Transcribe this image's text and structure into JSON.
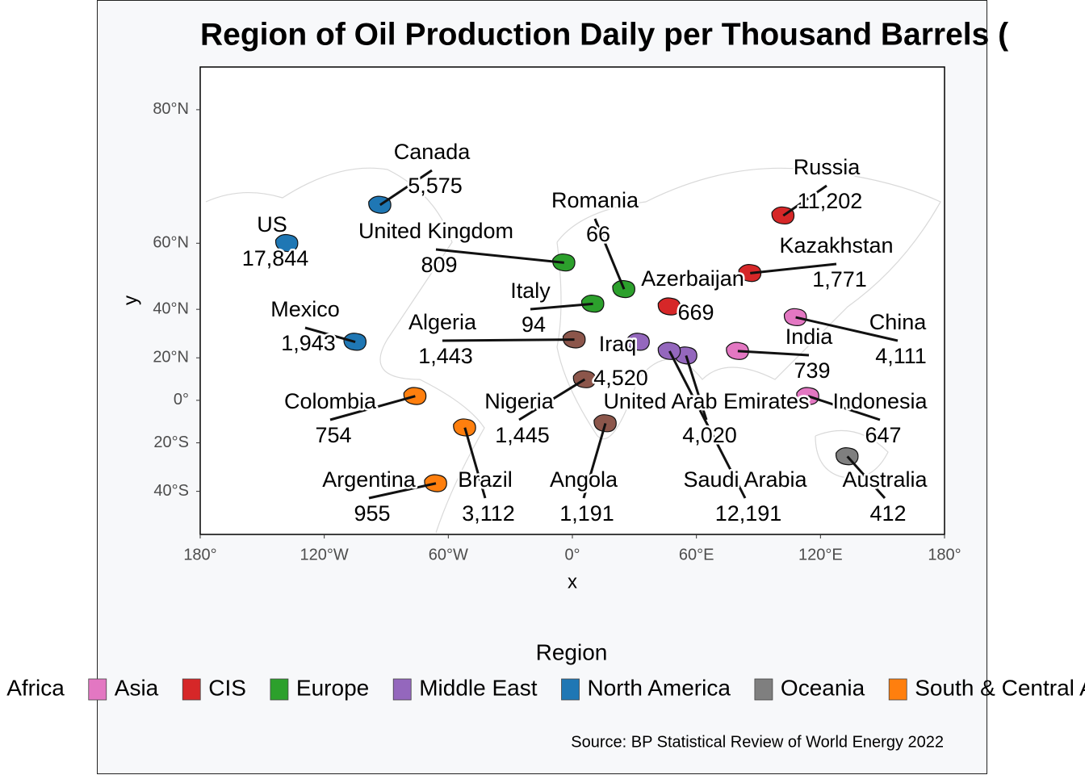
{
  "chart_data": {
    "type": "map",
    "projection": "mercator",
    "title": "Region of Oil Production Daily per Thousand Barrels (",
    "x_label": "x",
    "y_label": "y",
    "legend_title": "Region",
    "caption": "Source: BP Statistical Review of World Energy 2022",
    "xlim": [
      -180,
      180
    ],
    "ylim": [
      -54,
      83
    ],
    "xticks": [
      {
        "value": -180,
        "label": "180°"
      },
      {
        "value": -120,
        "label": "120°W"
      },
      {
        "value": -60,
        "label": "60°W"
      },
      {
        "value": 0,
        "label": "0°"
      },
      {
        "value": 60,
        "label": "60°E"
      },
      {
        "value": 120,
        "label": "120°E"
      },
      {
        "value": 180,
        "label": "180°"
      }
    ],
    "yticks": [
      {
        "value": -40,
        "label": "40°S"
      },
      {
        "value": -20,
        "label": "20°S"
      },
      {
        "value": 0,
        "label": "0°"
      },
      {
        "value": 20,
        "label": "20°N"
      },
      {
        "value": 40,
        "label": "40°N"
      },
      {
        "value": 60,
        "label": "60°N"
      },
      {
        "value": 80,
        "label": "80°N"
      }
    ],
    "regions": [
      {
        "name": "Africa",
        "color": "#8c564b"
      },
      {
        "name": "Asia",
        "color": "#e377c2"
      },
      {
        "name": "CIS",
        "color": "#d62728"
      },
      {
        "name": "Europe",
        "color": "#2ca02c"
      },
      {
        "name": "Middle East",
        "color": "#9467bd"
      },
      {
        "name": "North America",
        "color": "#1f77b4"
      },
      {
        "name": "Oceania",
        "color": "#7f7f7f"
      },
      {
        "name": "South & Central America",
        "color": "#ff7f0e"
      }
    ],
    "countries": [
      {
        "name": "Canada",
        "region": "North America",
        "value": 5575,
        "value_label": "5,575",
        "lon": -93,
        "lat": 68
      },
      {
        "name": "US",
        "region": "North America",
        "value": 17844,
        "value_label": "17,844",
        "lon": -138,
        "lat": 60
      },
      {
        "name": "Mexico",
        "region": "North America",
        "value": 1943,
        "value_label": "1,943",
        "lon": -105,
        "lat": 27
      },
      {
        "name": "United Kingdom",
        "region": "Europe",
        "value": 809,
        "value_label": "809",
        "lon": -4,
        "lat": 55
      },
      {
        "name": "Romania",
        "region": "Europe",
        "value": 66,
        "lon": 25,
        "lat": 47
      },
      {
        "name": "Italy",
        "region": "Europe",
        "value": 94,
        "lon": 10,
        "lat": 42
      },
      {
        "name": "Azerbaijan",
        "region": "CIS",
        "value": 669,
        "lon": 47,
        "lat": 41
      },
      {
        "name": "Russia",
        "region": "CIS",
        "value": 11202,
        "value_label": "11,202",
        "lon": 102,
        "lat": 66
      },
      {
        "name": "Kazakhstan",
        "region": "CIS",
        "value": 1771,
        "value_label": "1,771",
        "lon": 86,
        "lat": 52
      },
      {
        "name": "China",
        "region": "Asia",
        "value": 4111,
        "value_label": "4,111",
        "lon": 108,
        "lat": 37
      },
      {
        "name": "India",
        "region": "Asia",
        "value": 739,
        "lon": 80,
        "lat": 23
      },
      {
        "name": "Indonesia",
        "region": "Asia",
        "value": 647,
        "lon": 114,
        "lat": 2
      },
      {
        "name": "Iraq",
        "region": "Middle East",
        "value": 4520,
        "value_label": "4,520",
        "lon": 32,
        "lat": 27
      },
      {
        "name": "Algeria",
        "region": "Africa",
        "value": 1443,
        "value_label": "1,443",
        "lon": 1,
        "lat": 28
      },
      {
        "name": "Nigeria",
        "region": "Africa",
        "value": 1445,
        "value_label": "1,445",
        "lon": 6,
        "lat": 10
      },
      {
        "name": "Colombia",
        "region": "South & Central America",
        "value": 754,
        "lon": -76,
        "lat": 2
      },
      {
        "name": "United Arab Emirates",
        "region": "Middle East",
        "value": 4020,
        "value_label": "4,020",
        "lon": 55,
        "lat": 21
      },
      {
        "name": "Argentina",
        "region": "South & Central America",
        "value": 955,
        "lon": -66,
        "lat": -37
      },
      {
        "name": "Brazil",
        "region": "South & Central America",
        "value": 3112,
        "value_label": "3,112",
        "lon": -52,
        "lat": -13
      },
      {
        "name": "Angola",
        "region": "Africa",
        "value": 1191,
        "value_label": "1,191",
        "lon": 16,
        "lat": -11
      },
      {
        "name": "Saudi Arabia",
        "region": "Middle East",
        "value": 12191,
        "value_label": "12,191",
        "lon": 47,
        "lat": 23
      },
      {
        "name": "Australia",
        "region": "Oceania",
        "value": 412,
        "lon": 133,
        "lat": -26
      }
    ]
  }
}
